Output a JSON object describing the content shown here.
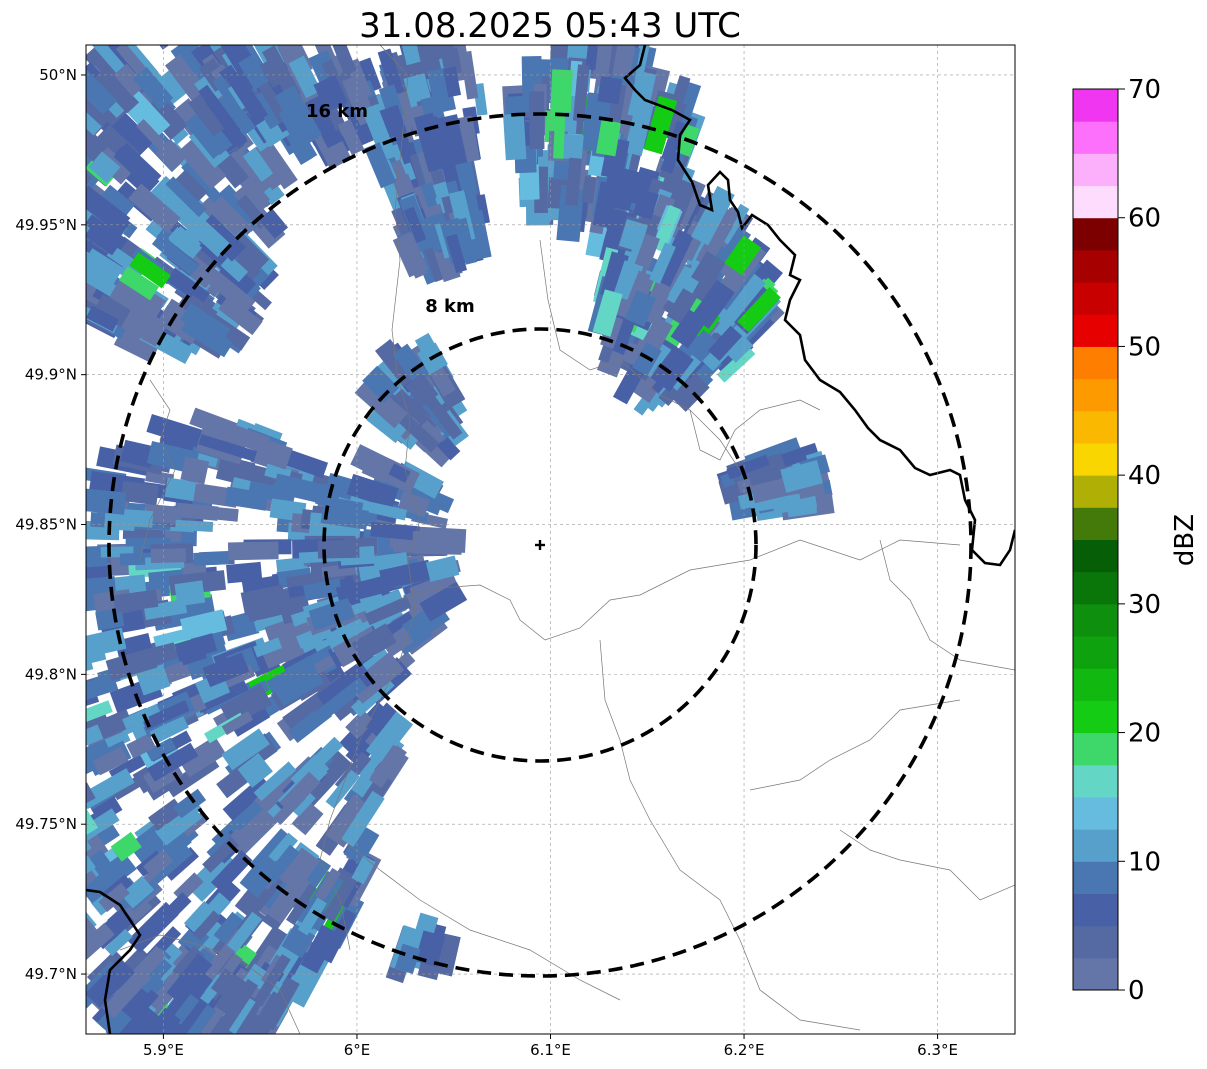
{
  "title": "31.08.2025 05:43 UTC",
  "map": {
    "lon_range": [
      5.86,
      6.34
    ],
    "lat_range": [
      49.68,
      50.01
    ],
    "x_ticks": [
      {
        "value": 5.9,
        "label": "5.9°E"
      },
      {
        "value": 6.0,
        "label": "6°E"
      },
      {
        "value": 6.1,
        "label": "6.1°E"
      },
      {
        "value": 6.2,
        "label": "6.2°E"
      },
      {
        "value": 6.3,
        "label": "6.3°E"
      }
    ],
    "y_ticks": [
      {
        "value": 50.0,
        "label": "50°N"
      },
      {
        "value": 49.95,
        "label": "49.95°N"
      },
      {
        "value": 49.9,
        "label": "49.9°N"
      },
      {
        "value": 49.85,
        "label": "49.85°N"
      },
      {
        "value": 49.8,
        "label": "49.8°N"
      },
      {
        "value": 49.75,
        "label": "49.75°N"
      },
      {
        "value": 49.7,
        "label": "49.7°N"
      }
    ],
    "grid": true,
    "radar_site": {
      "lon": 6.095,
      "lat": 49.843
    },
    "range_rings": [
      {
        "radius_km": 8,
        "label": "8 km"
      },
      {
        "radius_km": 16,
        "label": "16 km"
      }
    ]
  },
  "colorbar": {
    "label": "dBZ",
    "ticks": [
      {
        "value": 0,
        "label": "0"
      },
      {
        "value": 10,
        "label": "10"
      },
      {
        "value": 20,
        "label": "20"
      },
      {
        "value": 30,
        "label": "30"
      },
      {
        "value": 40,
        "label": "40"
      },
      {
        "value": 50,
        "label": "50"
      },
      {
        "value": 60,
        "label": "60"
      },
      {
        "value": 70,
        "label": "70"
      }
    ],
    "min": 0,
    "max": 70,
    "step": 2.5,
    "colors": [
      "#6475a8",
      "#5569a2",
      "#4760a6",
      "#4a77b2",
      "#58a0cc",
      "#66bcde",
      "#64d6c6",
      "#3ed86a",
      "#14cc14",
      "#10b810",
      "#0ea20e",
      "#0e900e",
      "#0a760a",
      "#065e06",
      "#447a0a",
      "#afaf06",
      "#fad600",
      "#fbb800",
      "#fd9a00",
      "#fe7e00",
      "#e60000",
      "#c80000",
      "#a60000",
      "#7c0000",
      "#fddcfd",
      "#fcb0fc",
      "#fc70fc",
      "#f036f0"
    ]
  }
}
